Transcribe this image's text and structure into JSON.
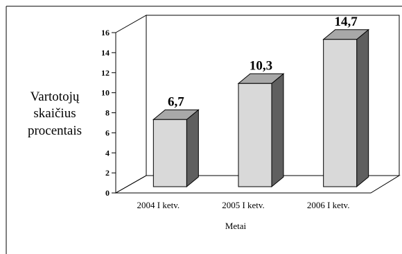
{
  "chart_data": {
    "type": "bar",
    "style": "3d-column",
    "categories": [
      "2004 I ketv.",
      "2005 I ketv.",
      "2006 I ketv."
    ],
    "values": [
      6.7,
      10.3,
      14.7
    ],
    "data_labels": [
      "6,7",
      "10,3",
      "14,7"
    ],
    "title": "",
    "xlabel": "Metai",
    "ylabel": [
      "Vartotojų",
      "skaičius",
      "procentais"
    ],
    "ylim": [
      0,
      16
    ],
    "yticks": [
      "0",
      "2",
      "4",
      "6",
      "8",
      "10",
      "12",
      "14",
      "16"
    ],
    "grid": false,
    "legend": "none",
    "colors": {
      "bar_front": "#d9d9d9",
      "bar_side": "#5f5f5f",
      "bar_top": "#a8a8a8",
      "outline": "#000000"
    }
  }
}
